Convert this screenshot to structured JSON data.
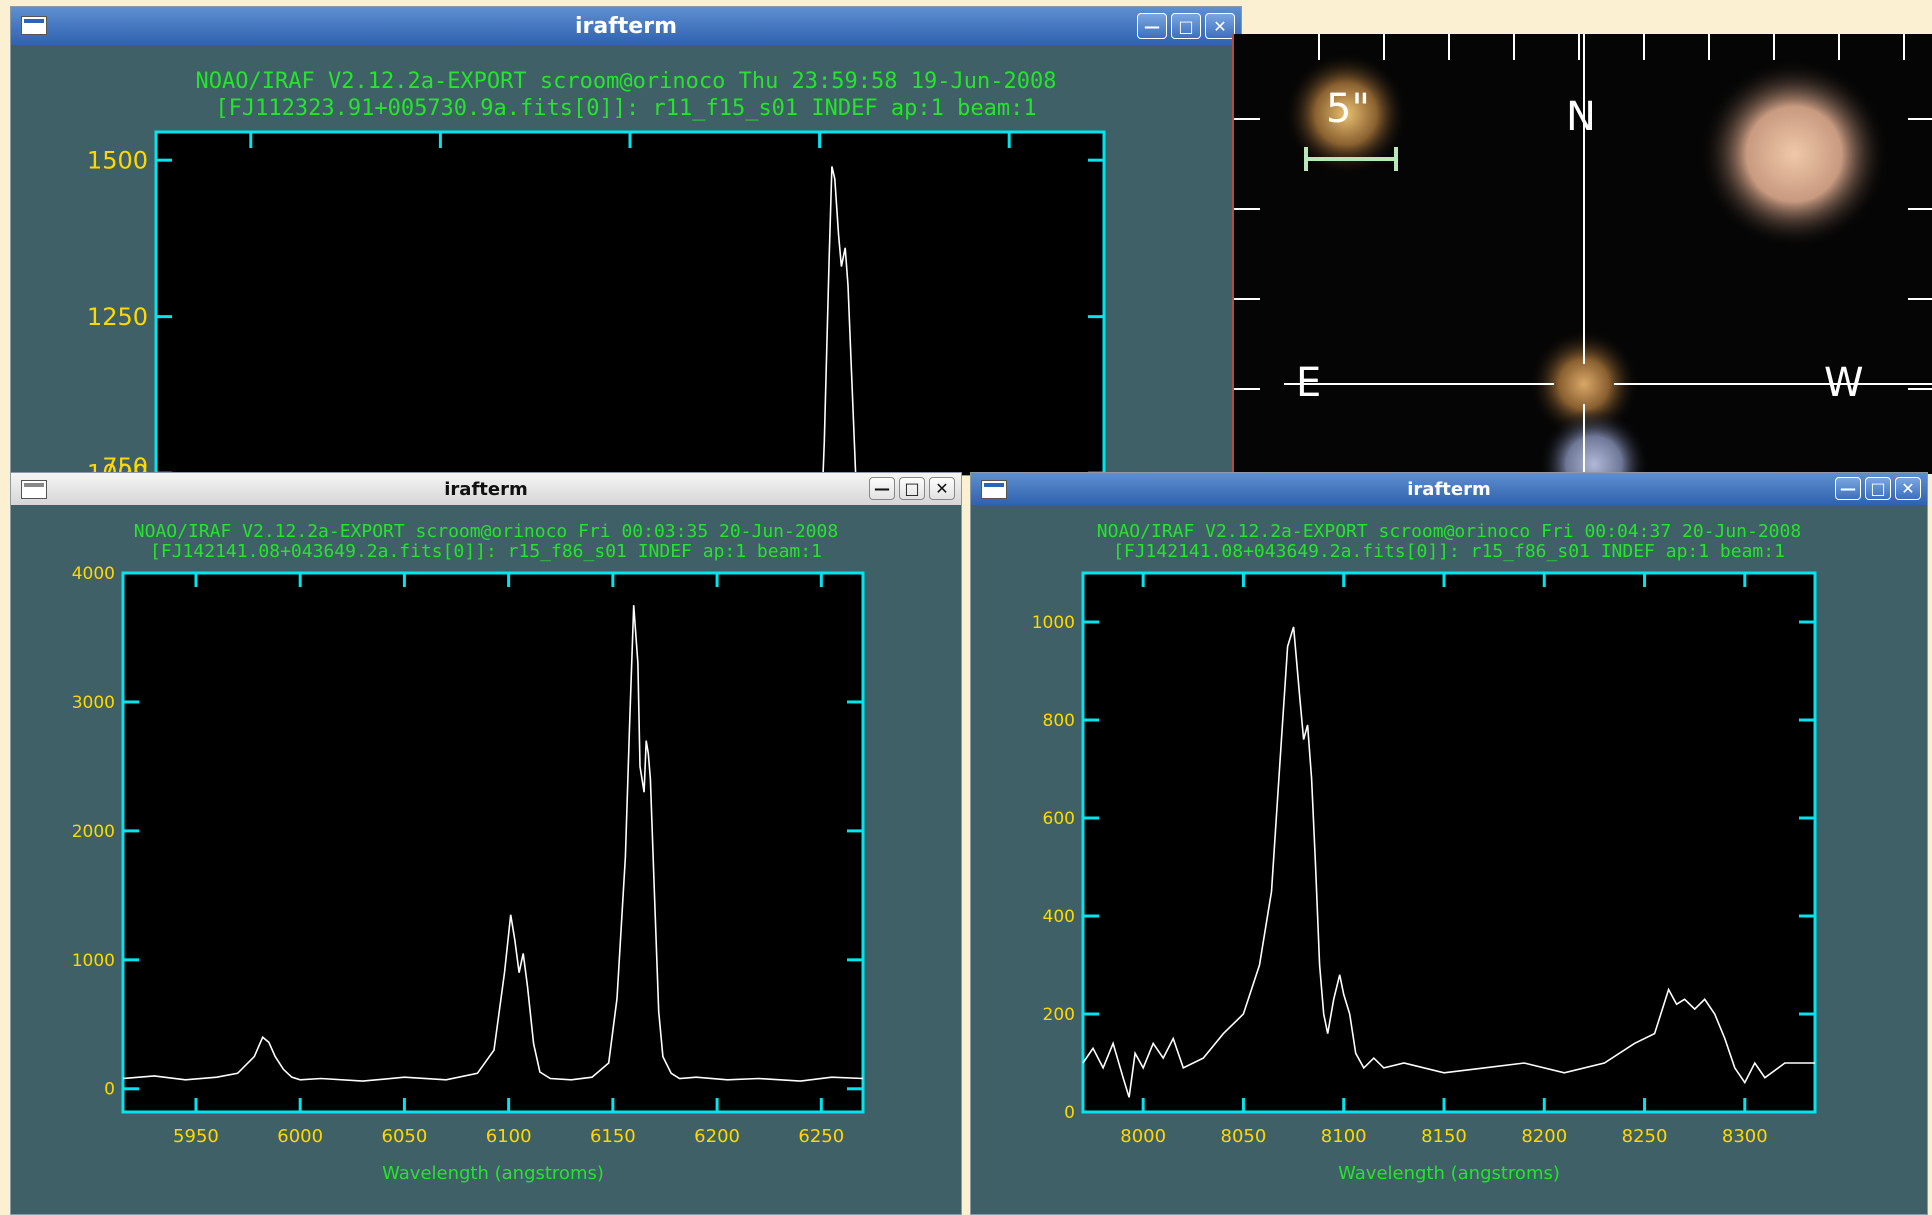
{
  "colors": {
    "text_green": "#24e52b",
    "axis_cyan": "#00e5ee",
    "tick_yellow": "#ffd800",
    "trace": "#ffffff",
    "window_bg": "#3e6066"
  },
  "icons": [
    "window-menu-icon",
    "minimize-icon",
    "maximize-icon",
    "close-icon"
  ],
  "window_top": {
    "title": "irafterm",
    "header_line1": "NOAO/IRAF V2.12.2a-EXPORT scroom@orinoco Thu 23:59:58 19-Jun-2008",
    "header_line2": "[FJ112323.91+005730.9a.fits[0]]: r11_f15_s01 INDEF ap:1 beam:1",
    "partial_tick": "750"
  },
  "window_left": {
    "title": "irafterm",
    "header_line1": "NOAO/IRAF V2.12.2a-EXPORT scroom@orinoco Fri 00:03:35 20-Jun-2008",
    "header_line2": "[FJ142141.08+043649.2a.fits[0]]: r15_f86_s01 INDEF ap:1 beam:1"
  },
  "window_right": {
    "title": "irafterm",
    "header_line1": "NOAO/IRAF V2.12.2a-EXPORT scroom@orinoco Fri 00:04:37 20-Jun-2008",
    "header_line2": "[FJ142141.08+043649.2a.fits[0]]: r15_f86_s01 INDEF ap:1 beam:1"
  },
  "sky_image": {
    "scale_label": "5\"",
    "north": "N",
    "east": "E",
    "west": "W"
  },
  "chart_data": [
    {
      "id": "top",
      "type": "line",
      "title": "",
      "xlabel": "",
      "ylabel": "",
      "yticks": [
        1000,
        1250,
        1500
      ],
      "ylim": [
        850,
        1545
      ],
      "xlim": [
        0,
        100
      ],
      "series": [
        {
          "x": [
            0,
            70.0,
            70.5,
            71.0,
            71.3,
            71.6,
            72.0,
            72.3,
            72.7,
            73.0,
            73.4,
            73.8,
            74.2,
            75.0,
            100
          ],
          "y": [
            null,
            855,
            1050,
            1340,
            1490,
            1470,
            1380,
            1330,
            1360,
            1300,
            1150,
            1000,
            870,
            850,
            null
          ]
        }
      ]
    },
    {
      "id": "left",
      "type": "line",
      "title": "",
      "xlabel": "Wavelength (angstroms)",
      "ylabel": "",
      "xticks": [
        5950,
        6000,
        6050,
        6100,
        6150,
        6200,
        6250
      ],
      "yticks": [
        0,
        1000,
        2000,
        3000,
        4000
      ],
      "xlim": [
        5915,
        6270
      ],
      "ylim": [
        -180,
        4000
      ],
      "series": [
        {
          "x": [
            5915,
            5930,
            5945,
            5960,
            5970,
            5978,
            5982,
            5985,
            5988,
            5992,
            5996,
            6000,
            6010,
            6030,
            6050,
            6070,
            6085,
            6093,
            6098,
            6101,
            6103,
            6105,
            6107,
            6109,
            6112,
            6115,
            6120,
            6130,
            6140,
            6148,
            6152,
            6156,
            6158,
            6160,
            6162,
            6163,
            6165,
            6166,
            6167,
            6168,
            6170,
            6172,
            6174,
            6178,
            6182,
            6190,
            6205,
            6220,
            6240,
            6255,
            6270
          ],
          "y": [
            80,
            100,
            70,
            90,
            120,
            250,
            400,
            360,
            250,
            150,
            90,
            70,
            80,
            60,
            90,
            70,
            120,
            300,
            900,
            1350,
            1150,
            900,
            1050,
            800,
            350,
            130,
            80,
            70,
            90,
            200,
            700,
            1800,
            2800,
            3750,
            3300,
            2500,
            2300,
            2700,
            2600,
            2400,
            1500,
            600,
            250,
            120,
            80,
            90,
            70,
            80,
            60,
            90,
            80
          ]
        }
      ]
    },
    {
      "id": "right",
      "type": "line",
      "title": "",
      "xlabel": "Wavelength (angstroms)",
      "ylabel": "",
      "xticks": [
        8000,
        8050,
        8100,
        8150,
        8200,
        8250,
        8300
      ],
      "yticks": [
        0,
        200,
        400,
        600,
        800,
        1000
      ],
      "xlim": [
        7970,
        8335
      ],
      "ylim": [
        0,
        1100
      ],
      "series": [
        {
          "x": [
            7970,
            7975,
            7980,
            7985,
            7990,
            7993,
            7996,
            8000,
            8005,
            8010,
            8015,
            8020,
            8030,
            8040,
            8050,
            8058,
            8064,
            8068,
            8072,
            8075,
            8078,
            8080,
            8082,
            8084,
            8086,
            8088,
            8090,
            8092,
            8095,
            8098,
            8100,
            8103,
            8106,
            8110,
            8115,
            8120,
            8130,
            8150,
            8170,
            8190,
            8210,
            8230,
            8245,
            8255,
            8262,
            8266,
            8270,
            8275,
            8280,
            8285,
            8290,
            8295,
            8300,
            8305,
            8310,
            8320,
            8335
          ],
          "y": [
            100,
            130,
            90,
            140,
            70,
            30,
            120,
            90,
            140,
            110,
            150,
            90,
            110,
            160,
            200,
            300,
            450,
            700,
            950,
            990,
            850,
            760,
            790,
            680,
            500,
            300,
            200,
            160,
            230,
            280,
            240,
            200,
            120,
            90,
            110,
            90,
            100,
            80,
            90,
            100,
            80,
            100,
            140,
            160,
            250,
            220,
            230,
            210,
            230,
            200,
            150,
            90,
            60,
            100,
            70,
            100,
            100
          ]
        }
      ]
    }
  ]
}
